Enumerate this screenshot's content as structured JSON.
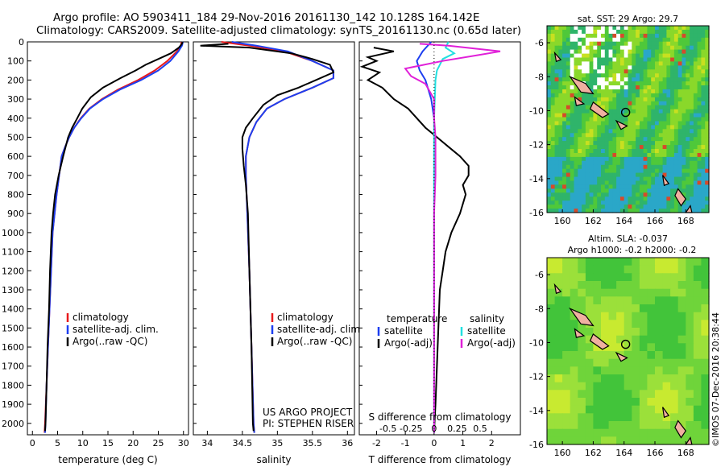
{
  "header": {
    "line1": "Argo profile: AO 5903411_184 29-Nov-2016 20161130_142 10.128S 164.142E",
    "line2": "Climatology: CARS2009. Satellite-adjusted climatology: synTS_20161130.nc (0.65d later)"
  },
  "side_label": "©IMOS 07-Dec-2016 20:38:44",
  "colors": {
    "climatology": "#e8191c",
    "satellite": "#1d3ff0",
    "argo": "#000000",
    "salinity_sat": "#22e0e0",
    "salinity_argo": "#e020d8"
  },
  "chart_data": [
    {
      "type": "line",
      "id": "temperature",
      "xlabel": "temperature (deg C)",
      "xlim": [
        -1,
        31
      ],
      "ylim": [
        0,
        2060
      ],
      "xticks": [
        0,
        5,
        10,
        15,
        20,
        25,
        30
      ],
      "yticks": [
        0,
        100,
        200,
        300,
        400,
        500,
        600,
        700,
        800,
        900,
        1000,
        1100,
        1200,
        1300,
        1400,
        1500,
        1600,
        1700,
        1800,
        1900,
        2000
      ],
      "legend": [
        "climatology",
        "satellite-adj. clim.",
        "Argo(..raw -QC)"
      ],
      "series": [
        {
          "name": "climatology",
          "color": "#e8191c",
          "points": [
            [
              29.6,
              0
            ],
            [
              29.5,
              20
            ],
            [
              28.7,
              50
            ],
            [
              26.8,
              100
            ],
            [
              24.3,
              150
            ],
            [
              21.0,
              200
            ],
            [
              17.0,
              250
            ],
            [
              13.8,
              300
            ],
            [
              11.3,
              350
            ],
            [
              9.6,
              400
            ],
            [
              8.3,
              450
            ],
            [
              7.3,
              500
            ],
            [
              6.5,
              550
            ],
            [
              5.8,
              600
            ],
            [
              5.3,
              700
            ],
            [
              4.8,
              800
            ],
            [
              4.4,
              900
            ],
            [
              4.0,
              1000
            ],
            [
              3.7,
              1200
            ],
            [
              3.4,
              1400
            ],
            [
              3.1,
              1600
            ],
            [
              2.8,
              1800
            ],
            [
              2.5,
              2000
            ],
            [
              2.4,
              2050
            ]
          ]
        },
        {
          "name": "satellite-adj. clim.",
          "color": "#1d3ff0",
          "points": [
            [
              29.9,
              0
            ],
            [
              29.7,
              20
            ],
            [
              29.0,
              50
            ],
            [
              27.4,
              100
            ],
            [
              25.0,
              150
            ],
            [
              21.6,
              200
            ],
            [
              17.4,
              250
            ],
            [
              14.0,
              300
            ],
            [
              11.4,
              350
            ],
            [
              9.7,
              400
            ],
            [
              8.3,
              450
            ],
            [
              7.3,
              500
            ],
            [
              6.5,
              550
            ],
            [
              5.8,
              600
            ],
            [
              5.3,
              700
            ],
            [
              4.8,
              800
            ],
            [
              4.4,
              900
            ],
            [
              4.0,
              1000
            ],
            [
              3.7,
              1200
            ],
            [
              3.4,
              1400
            ],
            [
              3.1,
              1600
            ],
            [
              2.8,
              1800
            ],
            [
              2.6,
              2000
            ],
            [
              2.5,
              2050
            ]
          ]
        },
        {
          "name": "Argo(..raw -QC)",
          "color": "#000000",
          "points": [
            [
              29.8,
              0
            ],
            [
              29.7,
              10
            ],
            [
              29.1,
              30
            ],
            [
              27.5,
              60
            ],
            [
              25.0,
              90
            ],
            [
              22.5,
              120
            ],
            [
              20.5,
              150
            ],
            [
              17.5,
              190
            ],
            [
              14.0,
              240
            ],
            [
              11.6,
              290
            ],
            [
              9.9,
              350
            ],
            [
              8.9,
              400
            ],
            [
              7.9,
              450
            ],
            [
              7.1,
              500
            ],
            [
              6.1,
              600
            ],
            [
              5.2,
              700
            ],
            [
              4.5,
              800
            ],
            [
              4.1,
              900
            ],
            [
              3.8,
              1000
            ],
            [
              3.5,
              1200
            ],
            [
              3.3,
              1400
            ],
            [
              3.0,
              1600
            ],
            [
              2.8,
              1800
            ],
            [
              2.6,
              2000
            ],
            [
              2.5,
              2040
            ]
          ]
        }
      ]
    },
    {
      "type": "line",
      "id": "salinity",
      "xlabel": "salinity",
      "xlim": [
        33.8,
        36.1
      ],
      "ylim": [
        0,
        2060
      ],
      "xticks": [
        34,
        34.5,
        35,
        35.5,
        36
      ],
      "legend": [
        "climatology",
        "satellite-adj. clim.",
        "Argo(..raw -QC)"
      ],
      "footnote": [
        "US ARGO PROJECT",
        "PI: STEPHEN RISER"
      ],
      "series": [
        {
          "name": "climatology",
          "color": "#e8191c",
          "points": [
            [
              34.2,
              0
            ],
            [
              34.6,
              20
            ],
            [
              35.1,
              50
            ],
            [
              35.5,
              100
            ],
            [
              35.8,
              150
            ],
            [
              35.8,
              190
            ],
            [
              35.5,
              240
            ],
            [
              35.1,
              300
            ],
            [
              34.85,
              350
            ],
            [
              34.7,
              420
            ],
            [
              34.6,
              500
            ],
            [
              34.55,
              600
            ],
            [
              34.55,
              700
            ],
            [
              34.57,
              900
            ],
            [
              34.6,
              1200
            ],
            [
              34.63,
              1600
            ],
            [
              34.66,
              2000
            ],
            [
              34.67,
              2050
            ]
          ]
        },
        {
          "name": "satellite-adj. clim.",
          "color": "#1d3ff0",
          "points": [
            [
              34.35,
              0
            ],
            [
              34.7,
              20
            ],
            [
              35.15,
              50
            ],
            [
              35.5,
              100
            ],
            [
              35.8,
              150
            ],
            [
              35.8,
              190
            ],
            [
              35.5,
              240
            ],
            [
              35.1,
              300
            ],
            [
              34.85,
              350
            ],
            [
              34.7,
              420
            ],
            [
              34.6,
              500
            ],
            [
              34.55,
              600
            ],
            [
              34.55,
              700
            ],
            [
              34.57,
              900
            ],
            [
              34.6,
              1200
            ],
            [
              34.63,
              1600
            ],
            [
              34.66,
              2000
            ],
            [
              34.67,
              2050
            ]
          ]
        },
        {
          "name": "Argo(..raw -QC)",
          "color": "#000000",
          "points": [
            [
              34.3,
              10
            ],
            [
              33.9,
              20
            ],
            [
              34.6,
              30
            ],
            [
              35.2,
              60
            ],
            [
              35.5,
              90
            ],
            [
              35.75,
              120
            ],
            [
              35.8,
              160
            ],
            [
              35.55,
              200
            ],
            [
              35.3,
              240
            ],
            [
              35.0,
              280
            ],
            [
              34.8,
              330
            ],
            [
              34.65,
              400
            ],
            [
              34.55,
              450
            ],
            [
              34.5,
              500
            ],
            [
              34.5,
              560
            ],
            [
              34.52,
              650
            ],
            [
              34.55,
              750
            ],
            [
              34.58,
              900
            ],
            [
              34.6,
              1200
            ],
            [
              34.63,
              1600
            ],
            [
              34.65,
              2000
            ],
            [
              34.66,
              2040
            ]
          ]
        }
      ]
    },
    {
      "type": "line",
      "id": "difference",
      "xlabel": "T difference from climatology",
      "top_label": "S difference from climatology",
      "xlim": [
        -2.6,
        3.0
      ],
      "ylim": [
        0,
        2060
      ],
      "xticks": [
        -2,
        -1,
        0,
        1,
        2
      ],
      "sticks": [
        "-0.5",
        "-0.25",
        "0",
        "0.25",
        "0.5"
      ],
      "s_tick_pos": [
        -1.6,
        -0.8,
        0,
        0.8,
        1.6
      ],
      "legend_headers": [
        "temperature",
        "salinity"
      ],
      "legend": [
        "satellite",
        "Argo(-adj)",
        "satellite",
        "Argo(-adj)"
      ],
      "series": [
        {
          "name": "satellite",
          "color": "#1d3ff0",
          "points": [
            [
              -0.1,
              0
            ],
            [
              -0.4,
              50
            ],
            [
              -0.6,
              100
            ],
            [
              -0.5,
              150
            ],
            [
              -0.3,
              200
            ],
            [
              -0.2,
              250
            ],
            [
              -0.1,
              300
            ],
            [
              0,
              400
            ],
            [
              0,
              500
            ],
            [
              0,
              700
            ],
            [
              0,
              1000
            ],
            [
              0,
              1500
            ],
            [
              0,
              2050
            ]
          ]
        },
        {
          "name": "Argo(-adj)",
          "color": "#000000",
          "points": [
            [
              -2.1,
              30
            ],
            [
              -1.4,
              50
            ],
            [
              -2.3,
              80
            ],
            [
              -2.0,
              100
            ],
            [
              -2.5,
              130
            ],
            [
              -1.9,
              160
            ],
            [
              -2.3,
              200
            ],
            [
              -1.8,
              240
            ],
            [
              -1.4,
              300
            ],
            [
              -0.9,
              350
            ],
            [
              -0.3,
              450
            ],
            [
              0.1,
              500
            ],
            [
              0.5,
              550
            ],
            [
              0.9,
              600
            ],
            [
              1.2,
              650
            ],
            [
              1.2,
              700
            ],
            [
              1.0,
              750
            ],
            [
              1.1,
              800
            ],
            [
              0.9,
              900
            ],
            [
              0.6,
              1000
            ],
            [
              0.4,
              1100
            ],
            [
              0.3,
              1200
            ],
            [
              0.2,
              1300
            ],
            [
              0.15,
              1500
            ],
            [
              0.1,
              1700
            ],
            [
              0.05,
              1900
            ],
            [
              0,
              2040
            ]
          ]
        },
        {
          "name": "satellite",
          "color": "#22e0e0",
          "points": [
            [
              0.5,
              0
            ],
            [
              0.4,
              30
            ],
            [
              0.7,
              60
            ],
            [
              0.3,
              90
            ],
            [
              0.2,
              120
            ],
            [
              0.1,
              150
            ],
            [
              0.05,
              200
            ],
            [
              0,
              400
            ],
            [
              0,
              800
            ],
            [
              0,
              2050
            ]
          ]
        },
        {
          "name": "Argo(-adj)",
          "color": "#e020d8",
          "points": [
            [
              -0.5,
              10
            ],
            [
              0.5,
              20
            ],
            [
              2.3,
              50
            ],
            [
              1.5,
              70
            ],
            [
              0.3,
              100
            ],
            [
              -1.0,
              140
            ],
            [
              -0.8,
              180
            ],
            [
              -0.3,
              220
            ],
            [
              0,
              300
            ],
            [
              0,
              400
            ],
            [
              0.05,
              500
            ],
            [
              0.05,
              700
            ],
            [
              0,
              900
            ],
            [
              0,
              1200
            ],
            [
              0,
              1600
            ],
            [
              0,
              2050
            ]
          ]
        }
      ]
    },
    {
      "type": "heatmap",
      "id": "sst_map",
      "title": "sat. SST: 29 Argo: 29.7",
      "xlim": [
        159,
        169.5
      ],
      "ylim": [
        -16,
        -5
      ],
      "xticks": [
        160,
        162,
        164,
        166,
        168
      ],
      "yticks": [
        -6,
        -8,
        -10,
        -12,
        -14,
        -16
      ],
      "marker": [
        164.1,
        -10.1
      ]
    },
    {
      "type": "heatmap",
      "id": "sla_map",
      "title": "Altim. SLA: -0.037",
      "subtitle": "Argo h1000: -0.2 h2000: -0.2",
      "xlim": [
        159,
        169.5
      ],
      "ylim": [
        -16,
        -5
      ],
      "xticks": [
        160,
        162,
        164,
        166,
        168
      ],
      "yticks": [
        -6,
        -8,
        -10,
        -12,
        -14,
        -16
      ],
      "marker": [
        164.1,
        -10.1
      ]
    }
  ]
}
